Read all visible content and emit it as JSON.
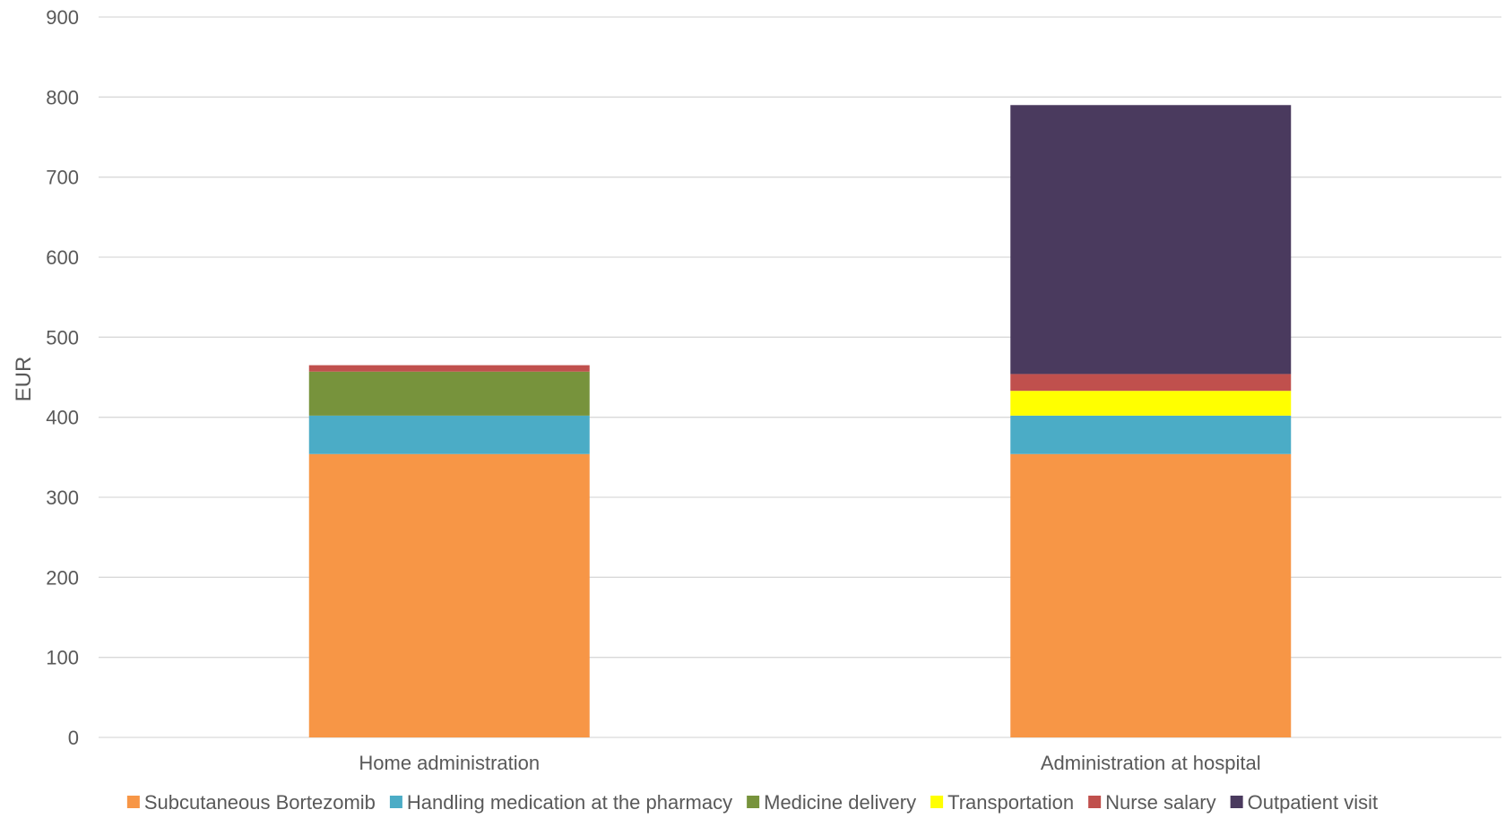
{
  "chart_data": {
    "type": "bar",
    "stacked": true,
    "title": "",
    "xlabel": "",
    "ylabel": "EUR",
    "ylim": [
      0,
      900
    ],
    "yticks": [
      0,
      100,
      200,
      300,
      400,
      500,
      600,
      700,
      800,
      900
    ],
    "grid": true,
    "legend_position": "bottom",
    "categories": [
      "Home administration",
      "Administration at hospital"
    ],
    "series": [
      {
        "name": "Subcutaneous Bortezomib",
        "color": "#F79646",
        "values": [
          354,
          354
        ]
      },
      {
        "name": "Handling medication at the pharmacy",
        "color": "#4BACC6",
        "values": [
          48,
          48
        ]
      },
      {
        "name": "Medicine delivery",
        "color": "#77933C",
        "values": [
          55,
          0
        ]
      },
      {
        "name": "Transportation",
        "color": "#FFFF00",
        "values": [
          0,
          31
        ]
      },
      {
        "name": "Nurse salary",
        "color": "#C0504D",
        "values": [
          8,
          21
        ]
      },
      {
        "name": "Outpatient visit",
        "color": "#4A3A5E",
        "values": [
          0,
          336
        ]
      }
    ],
    "colors": {
      "grid": "#D9D9D9",
      "axis": "#D9D9D9",
      "text": "#595959"
    }
  }
}
